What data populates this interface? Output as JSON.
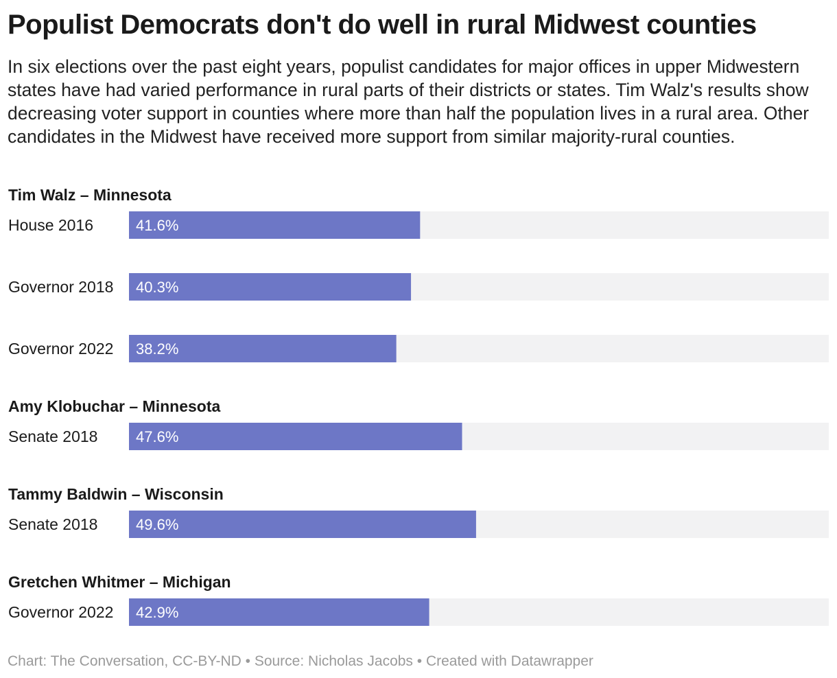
{
  "chart_data": {
    "type": "bar",
    "title": "Populist Democrats don't do well in rural Midwest counties",
    "subtitle": "In six elections over the past eight years, populist candidates for major offices in upper Midwestern states have had varied performance in rural parts of their districts or states. Tim Walz's results show decreasing voter support in counties where more than half the population lives in a rural area. Other candidates in the Midwest have received more support from similar majority-rural counties.",
    "xlim": [
      0,
      100
    ],
    "grid": false,
    "colors": {
      "bar": "#6d77c6",
      "track": "#f2f2f3"
    },
    "groups": [
      {
        "title": "Tim Walz – Minnesota",
        "rows": [
          {
            "label": "House 2016",
            "value": 41.6,
            "value_label": "41.6%"
          },
          {
            "label": "Governor 2018",
            "value": 40.3,
            "value_label": "40.3%"
          },
          {
            "label": "Governor 2022",
            "value": 38.2,
            "value_label": "38.2%"
          }
        ]
      },
      {
        "title": "Amy Klobuchar – Minnesota",
        "rows": [
          {
            "label": "Senate 2018",
            "value": 47.6,
            "value_label": "47.6%"
          }
        ]
      },
      {
        "title": "Tammy Baldwin – Wisconsin",
        "rows": [
          {
            "label": "Senate 2018",
            "value": 49.6,
            "value_label": "49.6%"
          }
        ]
      },
      {
        "title": "Gretchen Whitmer – Michigan",
        "rows": [
          {
            "label": "Governor 2022",
            "value": 42.9,
            "value_label": "42.9%"
          }
        ]
      }
    ],
    "footer": "Chart: The Conversation, CC-BY-ND • Source: Nicholas Jacobs • Created with Datawrapper"
  }
}
